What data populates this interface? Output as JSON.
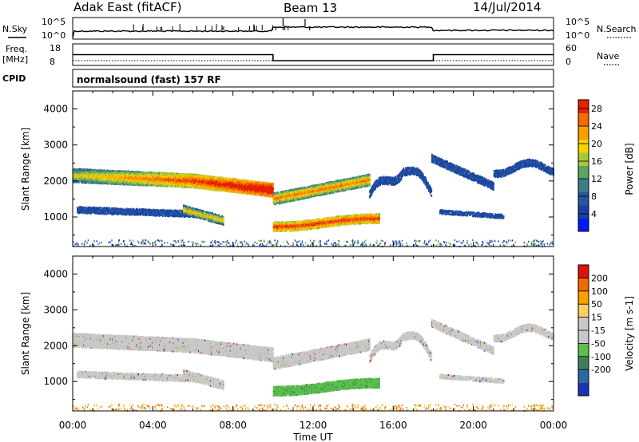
{
  "header": {
    "station": "Adak East (fitACF)",
    "beam": "Beam 13",
    "date": "14/Jul/2014"
  },
  "summary": {
    "nsky_label": "N.Sky",
    "nsky_ticks": [
      "10^5",
      "10^0"
    ],
    "nsearch_label": "N.Search",
    "nsearch_ticks": [
      "10^5",
      "10^0"
    ],
    "freq_label": "Freq.",
    "freq_unit": "[MHz]",
    "freq_ticks": [
      "18",
      "8"
    ],
    "nave_label": "Nave",
    "nave_ticks": [
      "60",
      "0"
    ],
    "cpid_label": "CPID",
    "cpid_text": "normalsound (fast) 157 RF"
  },
  "colors": {
    "power_scale": [
      "#0018ff",
      "#1b3ea8",
      "#24579b",
      "#3b7b8a",
      "#5aa560",
      "#a8c83a",
      "#f7d100",
      "#f7a000",
      "#f66a00",
      "#e72000"
    ],
    "velocity_scale": [
      "#1b34b4",
      "#2b6aa0",
      "#3f7f5a",
      "#5cc04b",
      "#c8c8c8",
      "#c8c8c8",
      "#f7d060",
      "#f7a000",
      "#f06a00",
      "#e01010"
    ]
  },
  "chart_data": [
    {
      "type": "line",
      "panel": "frequency",
      "y_axis_label": "Freq. [MHz]",
      "ylim": [
        8,
        18
      ],
      "x": [
        "00:00",
        "10:00",
        "10:00",
        "18:00",
        "18:00",
        "24:00"
      ],
      "series": [
        {
          "values": [
            13,
            13,
            10,
            10,
            13,
            13
          ]
        }
      ]
    },
    {
      "type": "heatmap",
      "panel": "power",
      "xlabel": "Time UT",
      "ylabel": "Slant Range [km]",
      "x_ticks": [
        "00:00",
        "04:00",
        "08:00",
        "12:00",
        "16:00",
        "20:00",
        "00:00"
      ],
      "y_ticks": [
        "1000",
        "2000",
        "3000",
        "4000"
      ],
      "ylim": [
        180,
        4500
      ],
      "colorbar_label": "Power [dB]",
      "colorbar_ticks": [
        "4",
        "8",
        "12",
        "16",
        "20",
        "24",
        "28"
      ],
      "colorbar_range": [
        0,
        30
      ]
    },
    {
      "type": "heatmap",
      "panel": "velocity",
      "xlabel": "Time UT",
      "ylabel": "Slant Range [km]",
      "x_ticks": [
        "00:00",
        "04:00",
        "08:00",
        "12:00",
        "16:00",
        "20:00",
        "00:00"
      ],
      "y_ticks": [
        "1000",
        "2000",
        "3000",
        "4000"
      ],
      "ylim": [
        180,
        4500
      ],
      "colorbar_label": "Velocity [m s-1]",
      "colorbar_ticks": [
        "200",
        "100",
        "50",
        "15",
        "-15",
        "-50",
        "-100",
        "-200"
      ]
    }
  ],
  "time_axis": {
    "xlabel": "Time UT"
  }
}
